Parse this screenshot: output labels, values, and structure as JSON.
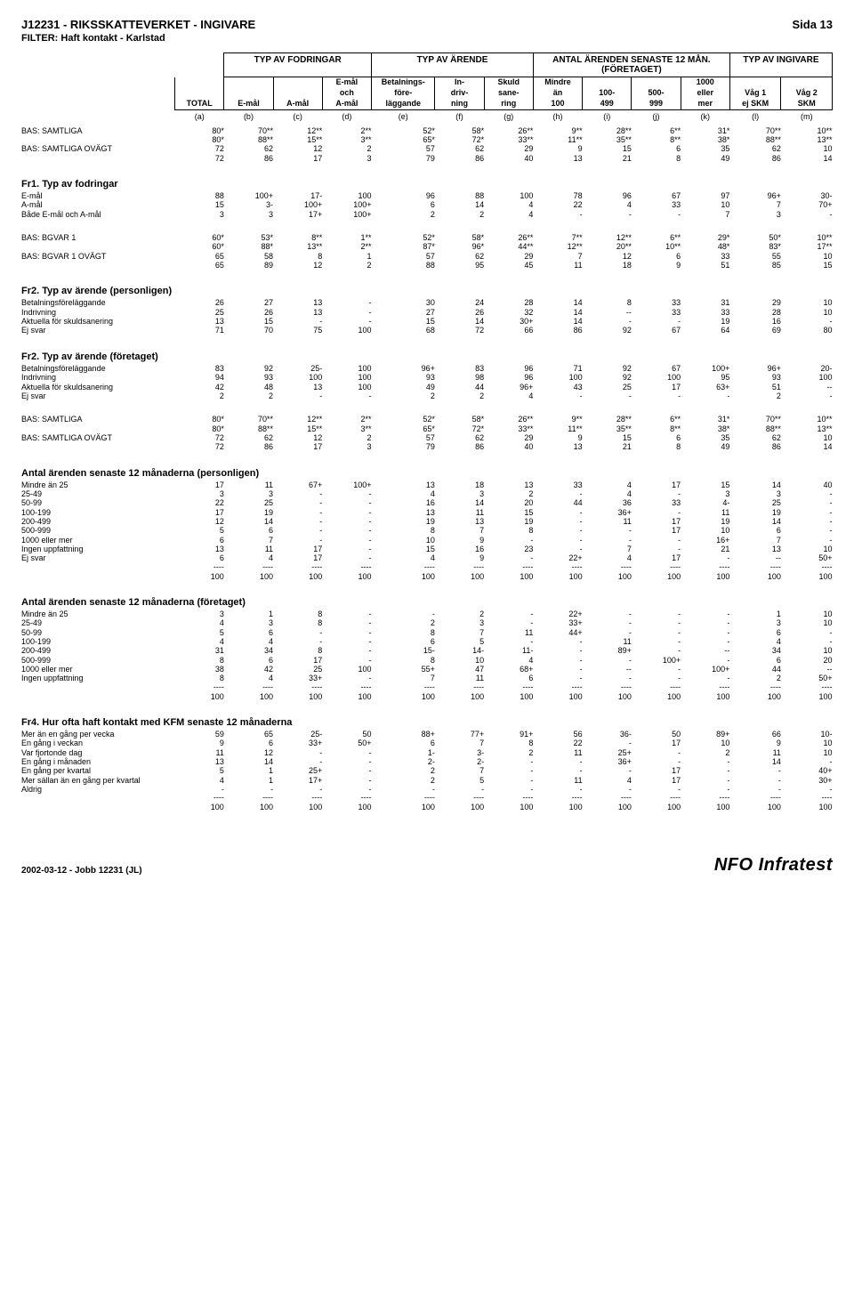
{
  "header": {
    "title": "J12231 - RIKSSKATTEVERKET - INGIVARE",
    "page": "Sida 13",
    "filter": "FILTER: Haft kontakt - Karlstad"
  },
  "colors": {
    "text": "#000000",
    "bg": "#ffffff",
    "border": "#000000"
  },
  "fonts": {
    "body_family": "Arial",
    "body_size_pt": 9,
    "title_size_pt": 13
  },
  "column_groups": [
    {
      "label": "TYP AV FODRINGAR",
      "span": 3
    },
    {
      "label": "TYP AV ÄRENDE",
      "span": 3
    },
    {
      "label": "ANTAL ÄRENDEN SENASTE 12 MÅN. (FÖRETAGET)",
      "span": 4
    },
    {
      "label": "TYP AV INGIVARE",
      "span": 2
    }
  ],
  "columns": [
    {
      "l1": "",
      "l2": "",
      "l3": "TOTAL"
    },
    {
      "l1": "",
      "l2": "",
      "l3": "E-mål"
    },
    {
      "l1": "",
      "l2": "",
      "l3": "A-mål"
    },
    {
      "l1": "E-mål",
      "l2": "och",
      "l3": "A-mål"
    },
    {
      "l1": "Betalnings-",
      "l2": "före-",
      "l3": "läggande"
    },
    {
      "l1": "In-",
      "l2": "driv-",
      "l3": "ning"
    },
    {
      "l1": "Skuld",
      "l2": "sane-",
      "l3": "ring"
    },
    {
      "l1": "Mindre",
      "l2": "än",
      "l3": "100"
    },
    {
      "l1": "",
      "l2": "100-",
      "l3": "499"
    },
    {
      "l1": "",
      "l2": "500-",
      "l3": "999"
    },
    {
      "l1": "1000",
      "l2": "eller",
      "l3": "mer"
    },
    {
      "l1": "",
      "l2": "Våg 1",
      "l3": "ej SKM"
    },
    {
      "l1": "",
      "l2": "Våg 2",
      "l3": "SKM"
    }
  ],
  "letters": [
    "(a)",
    "(b)",
    "(c)",
    "(d)",
    "(e)",
    "(f)",
    "(g)",
    "(h)",
    "(i)",
    "(j)",
    "(k)",
    "(l)",
    "(m)"
  ],
  "sections": [
    {
      "rows": [
        {
          "label": "BAS: SAMTLIGA",
          "v": [
            "80*",
            "70**",
            "12**",
            "2**",
            "52*",
            "58*",
            "26**",
            "9**",
            "28**",
            "6**",
            "31*",
            "70**",
            "10**"
          ]
        },
        {
          "label": "",
          "v": [
            "80*",
            "88**",
            "15**",
            "3**",
            "65*",
            "72*",
            "33**",
            "11**",
            "35**",
            "8**",
            "38*",
            "88**",
            "13**"
          ]
        },
        {
          "label": "BAS: SAMTLIGA OVÄGT",
          "v": [
            "72",
            "62",
            "12",
            "2",
            "57",
            "62",
            "29",
            "9",
            "15",
            "6",
            "35",
            "62",
            "10"
          ]
        },
        {
          "label": "",
          "v": [
            "72",
            "86",
            "17",
            "3",
            "79",
            "86",
            "40",
            "13",
            "21",
            "8",
            "49",
            "86",
            "14"
          ]
        }
      ]
    },
    {
      "heading": "Fr1. Typ av fodringar",
      "rows": [
        {
          "label": "E-mål",
          "v": [
            "88",
            "100+",
            "17-",
            "100",
            "96",
            "88",
            "100",
            "78",
            "96",
            "67",
            "97",
            "96+",
            "30-"
          ]
        },
        {
          "label": "A-mål",
          "v": [
            "15",
            "3-",
            "100+",
            "100+",
            "6",
            "14",
            "4",
            "22",
            "4",
            "33",
            "10",
            "7",
            "70+"
          ]
        },
        {
          "label": "Både E-mål och A-mål",
          "v": [
            "3",
            "3",
            "17+",
            "100+",
            "2",
            "2",
            "4",
            "-",
            "-",
            "-",
            "7",
            "3",
            "-"
          ]
        }
      ]
    },
    {
      "rows": [
        {
          "label": "BAS: BGVAR 1",
          "v": [
            "60*",
            "53*",
            "8**",
            "1**",
            "52*",
            "58*",
            "26**",
            "7**",
            "12**",
            "6**",
            "29*",
            "50*",
            "10**"
          ]
        },
        {
          "label": "",
          "v": [
            "60*",
            "88*",
            "13**",
            "2**",
            "87*",
            "96*",
            "44**",
            "12**",
            "20**",
            "10**",
            "48*",
            "83*",
            "17**"
          ]
        },
        {
          "label": "BAS: BGVAR 1 OVÄGT",
          "v": [
            "65",
            "58",
            "8",
            "1",
            "57",
            "62",
            "29",
            "7",
            "12",
            "6",
            "33",
            "55",
            "10"
          ]
        },
        {
          "label": "",
          "v": [
            "65",
            "89",
            "12",
            "2",
            "88",
            "95",
            "45",
            "11",
            "18",
            "9",
            "51",
            "85",
            "15"
          ]
        }
      ]
    },
    {
      "heading": "Fr2. Typ av ärende (personligen)",
      "rows": [
        {
          "label": "Betalningsföreläggande",
          "v": [
            "26",
            "27",
            "13",
            "-",
            "30",
            "24",
            "28",
            "14",
            "8",
            "33",
            "31",
            "29",
            "10"
          ]
        },
        {
          "label": "Indrivning",
          "v": [
            "25",
            "26",
            "13",
            "-",
            "27",
            "26",
            "32",
            "14",
            "--",
            "33",
            "33",
            "28",
            "10"
          ]
        },
        {
          "label": "Aktuella för skuldsanering",
          "v": [
            "13",
            "15",
            "-",
            "-",
            "15",
            "14",
            "30+",
            "14",
            "-",
            "-",
            "19",
            "16",
            "-"
          ]
        },
        {
          "label": "Ej svar",
          "v": [
            "71",
            "70",
            "75",
            "100",
            "68",
            "72",
            "66",
            "86",
            "92",
            "67",
            "64",
            "69",
            "80"
          ]
        }
      ]
    },
    {
      "heading": "Fr2. Typ av ärende (företaget)",
      "rows": [
        {
          "label": "Betalningsföreläggande",
          "v": [
            "83",
            "92",
            "25-",
            "100",
            "96+",
            "83",
            "96",
            "71",
            "92",
            "67",
            "100+",
            "96+",
            "20-"
          ]
        },
        {
          "label": "Indrivning",
          "v": [
            "94",
            "93",
            "100",
            "100",
            "93",
            "98",
            "96",
            "100",
            "92",
            "100",
            "95",
            "93",
            "100"
          ]
        },
        {
          "label": "Aktuella för skuldsanering",
          "v": [
            "42",
            "48",
            "13",
            "100",
            "49",
            "44",
            "96+",
            "43",
            "25",
            "17",
            "63+",
            "51",
            "--"
          ]
        },
        {
          "label": "Ej svar",
          "v": [
            "2",
            "2",
            "-",
            "-",
            "2",
            "2",
            "4",
            "-",
            "-",
            "-",
            "-",
            "2",
            "-"
          ]
        }
      ]
    },
    {
      "rows": [
        {
          "label": "BAS: SAMTLIGA",
          "v": [
            "80*",
            "70**",
            "12**",
            "2**",
            "52*",
            "58*",
            "26**",
            "9**",
            "28**",
            "6**",
            "31*",
            "70**",
            "10**"
          ]
        },
        {
          "label": "",
          "v": [
            "80*",
            "88**",
            "15**",
            "3**",
            "65*",
            "72*",
            "33**",
            "11**",
            "35**",
            "8**",
            "38*",
            "88**",
            "13**"
          ]
        },
        {
          "label": "BAS: SAMTLIGA OVÄGT",
          "v": [
            "72",
            "62",
            "12",
            "2",
            "57",
            "62",
            "29",
            "9",
            "15",
            "6",
            "35",
            "62",
            "10"
          ]
        },
        {
          "label": "",
          "v": [
            "72",
            "86",
            "17",
            "3",
            "79",
            "86",
            "40",
            "13",
            "21",
            "8",
            "49",
            "86",
            "14"
          ]
        }
      ]
    },
    {
      "heading": "Antal ärenden senaste 12 månaderna (personligen)",
      "rows": [
        {
          "label": "Mindre än 25",
          "v": [
            "17",
            "11",
            "67+",
            "100+",
            "13",
            "18",
            "13",
            "33",
            "4",
            "17",
            "15",
            "14",
            "40"
          ]
        },
        {
          "label": "25-49",
          "v": [
            "3",
            "3",
            "-",
            "-",
            "4",
            "3",
            "2",
            "-",
            "4",
            "-",
            "3",
            "3",
            "-"
          ]
        },
        {
          "label": "50-99",
          "v": [
            "22",
            "25",
            "-",
            "-",
            "16",
            "14",
            "20",
            "44",
            "36",
            "33",
            "4-",
            "25",
            "-"
          ]
        },
        {
          "label": "100-199",
          "v": [
            "17",
            "19",
            "-",
            "-",
            "13",
            "11",
            "15",
            "-",
            "36+",
            "-",
            "11",
            "19",
            "-"
          ]
        },
        {
          "label": "200-499",
          "v": [
            "12",
            "14",
            "-",
            "-",
            "19",
            "13",
            "19",
            "-",
            "11",
            "17",
            "19",
            "14",
            "-"
          ]
        },
        {
          "label": "500-999",
          "v": [
            "5",
            "6",
            "-",
            "-",
            "8",
            "7",
            "8",
            "-",
            "-",
            "17",
            "10",
            "6",
            "-"
          ]
        },
        {
          "label": "1000 eller mer",
          "v": [
            "6",
            "7",
            "-",
            "-",
            "10",
            "9",
            "-",
            "-",
            "-",
            "-",
            "16+",
            "7",
            "-"
          ]
        },
        {
          "label": "Ingen uppfattning",
          "v": [
            "13",
            "11",
            "17",
            "-",
            "15",
            "16",
            "23",
            "-",
            "7",
            "-",
            "21",
            "13",
            "10"
          ]
        },
        {
          "label": "Ej svar",
          "v": [
            "6",
            "4",
            "17",
            "-",
            "4",
            "9",
            "-",
            "22+",
            "4",
            "17",
            "-",
            "--",
            "50+"
          ]
        },
        {
          "label": "",
          "dashes": true,
          "v": [
            "----",
            "----",
            "----",
            "----",
            "----",
            "----",
            "----",
            "----",
            "----",
            "----",
            "----",
            "----",
            "----"
          ]
        },
        {
          "label": "",
          "v": [
            "100",
            "100",
            "100",
            "100",
            "100",
            "100",
            "100",
            "100",
            "100",
            "100",
            "100",
            "100",
            "100"
          ]
        }
      ]
    },
    {
      "heading": "Antal ärenden senaste 12 månaderna (företaget)",
      "rows": [
        {
          "label": "Mindre än 25",
          "v": [
            "3",
            "1",
            "8",
            "-",
            "-",
            "2",
            "-",
            "22+",
            "-",
            "-",
            "-",
            "1",
            "10"
          ]
        },
        {
          "label": "25-49",
          "v": [
            "4",
            "3",
            "8",
            "-",
            "2",
            "3",
            "-",
            "33+",
            "-",
            "-",
            "-",
            "3",
            "10"
          ]
        },
        {
          "label": "50-99",
          "v": [
            "5",
            "6",
            "-",
            "-",
            "8",
            "7",
            "11",
            "44+",
            "-",
            "-",
            "-",
            "6",
            "-"
          ]
        },
        {
          "label": "100-199",
          "v": [
            "4",
            "4",
            "-",
            "-",
            "6",
            "5",
            "-",
            "-",
            "11",
            "-",
            "-",
            "4",
            "-"
          ]
        },
        {
          "label": "200-499",
          "v": [
            "31",
            "34",
            "8",
            "-",
            "15-",
            "14-",
            "11-",
            "-",
            "89+",
            "-",
            "--",
            "34",
            "10"
          ]
        },
        {
          "label": "500-999",
          "v": [
            "8",
            "6",
            "17",
            "-",
            "8",
            "10",
            "4",
            "-",
            "-",
            "100+",
            "-",
            "6",
            "20"
          ]
        },
        {
          "label": "1000 eller mer",
          "v": [
            "38",
            "42",
            "25",
            "100",
            "55+",
            "47",
            "68+",
            "-",
            "--",
            "-",
            "100+",
            "44",
            "--"
          ]
        },
        {
          "label": "Ingen uppfattning",
          "v": [
            "8",
            "4",
            "33+",
            "-",
            "7",
            "11",
            "6",
            "-",
            "-",
            "-",
            "-",
            "2",
            "50+"
          ]
        },
        {
          "label": "",
          "dashes": true,
          "v": [
            "----",
            "----",
            "----",
            "----",
            "----",
            "----",
            "----",
            "----",
            "----",
            "----",
            "----",
            "----",
            "----"
          ]
        },
        {
          "label": "",
          "v": [
            "100",
            "100",
            "100",
            "100",
            "100",
            "100",
            "100",
            "100",
            "100",
            "100",
            "100",
            "100",
            "100"
          ]
        }
      ]
    },
    {
      "heading": "Fr4. Hur ofta haft kontakt med KFM senaste 12 månaderna",
      "rows": [
        {
          "label": "Mer än en gång per vecka",
          "v": [
            "59",
            "65",
            "25-",
            "50",
            "88+",
            "77+",
            "91+",
            "56",
            "36-",
            "50",
            "89+",
            "66",
            "10-"
          ]
        },
        {
          "label": "En gång i veckan",
          "v": [
            "9",
            "6",
            "33+",
            "50+",
            "6",
            "7",
            "8",
            "22",
            "-",
            "17",
            "10",
            "9",
            "10"
          ]
        },
        {
          "label": "Var fjortonde dag",
          "v": [
            "11",
            "12",
            "-",
            "-",
            "1-",
            "3-",
            "2",
            "11",
            "25+",
            "-",
            "2",
            "11",
            "10"
          ]
        },
        {
          "label": "En gång i månaden",
          "v": [
            "13",
            "14",
            "-",
            "-",
            "2-",
            "2-",
            "-",
            "-",
            "36+",
            "-",
            "-",
            "14",
            "-"
          ]
        },
        {
          "label": "En gång per kvartal",
          "v": [
            "5",
            "1",
            "25+",
            "-",
            "2",
            "7",
            "-",
            "-",
            "-",
            "17",
            "-",
            "-",
            "40+"
          ]
        },
        {
          "label": "Mer sällan än en gång per kvartal",
          "v": [
            "4",
            "1",
            "17+",
            "-",
            "2",
            "5",
            "-",
            "11",
            "4",
            "17",
            "-",
            "-",
            "30+"
          ]
        },
        {
          "label": "Aldrig",
          "v": [
            "-",
            "-",
            "-",
            "-",
            "-",
            "-",
            "-",
            "-",
            "-",
            "-",
            "-",
            "-",
            "-"
          ]
        },
        {
          "label": "",
          "dashes": true,
          "v": [
            "----",
            "----",
            "----",
            "----",
            "----",
            "----",
            "----",
            "----",
            "----",
            "----",
            "----",
            "----",
            "----"
          ]
        },
        {
          "label": "",
          "v": [
            "100",
            "100",
            "100",
            "100",
            "100",
            "100",
            "100",
            "100",
            "100",
            "100",
            "100",
            "100",
            "100"
          ]
        }
      ]
    }
  ],
  "footer": {
    "left": "2002-03-12 - Jobb 12231 (JL)",
    "right": "NFO Infratest"
  }
}
